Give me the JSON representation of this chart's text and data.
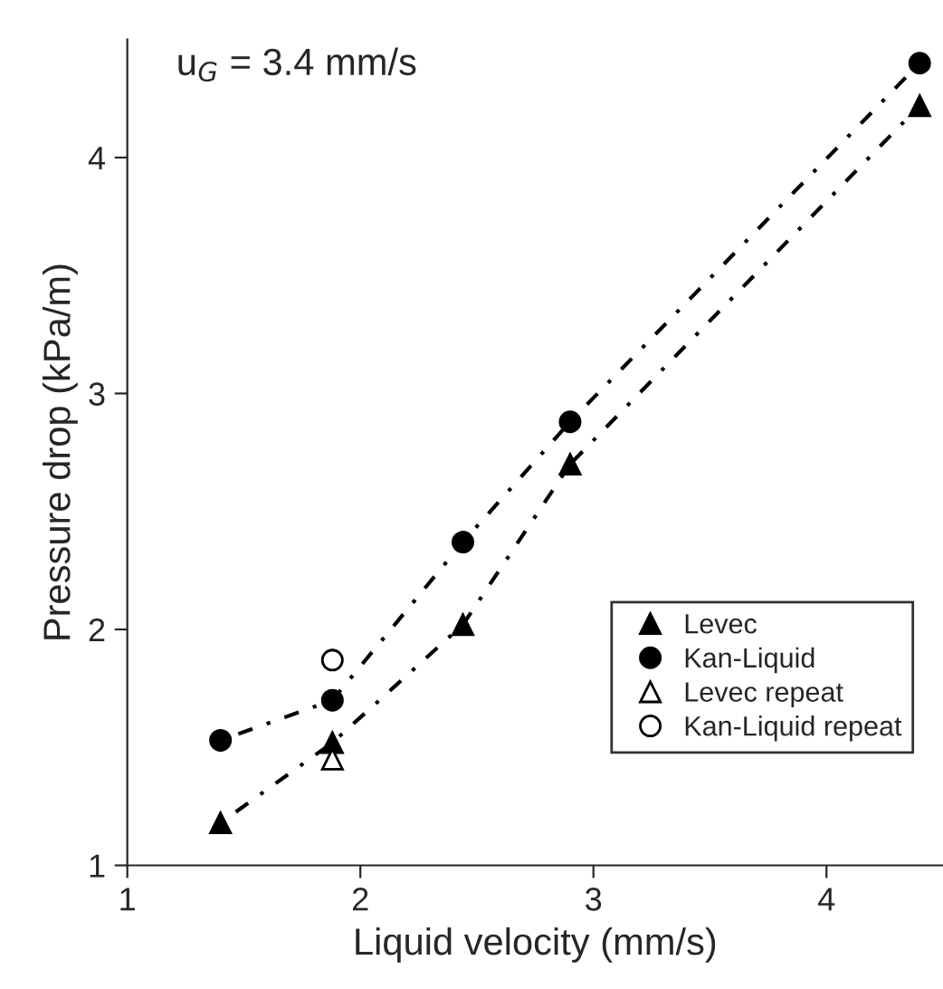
{
  "chart_data": {
    "type": "scatter",
    "xlabel": "Liquid velocity (mm/s)",
    "ylabel": "Pressure drop (kPa/m)",
    "annotations": [
      "u$_{G}$ = 3.4 mm/s"
    ],
    "xlim": [
      1,
      4.5
    ],
    "xticks": [
      1,
      2,
      3,
      4
    ],
    "ylim": [
      1,
      4.5
    ],
    "yticks": [
      1,
      2,
      3,
      4
    ],
    "grid": false,
    "legend": "bottom right",
    "series": [
      {
        "name": "Levec",
        "type": "line",
        "marker": "triangle",
        "line_style": "dotted",
        "color": "#000000",
        "x": [
          1.4,
          1.88,
          2.44,
          2.9,
          4.4
        ],
        "values": [
          1.18,
          1.52,
          2.02,
          2.7,
          4.22
        ]
      },
      {
        "name": "Kan-Liquid",
        "type": "line",
        "marker": "circle",
        "line_style": "dotted",
        "color": "#000000",
        "x": [
          1.4,
          1.88,
          2.44,
          2.9,
          4.4
        ],
        "values": [
          1.53,
          1.7,
          2.37,
          2.88,
          4.4
        ]
      },
      {
        "name": "Levec repeat",
        "marker": "triangle",
        "color": "#ffffff",
        "x": [
          1.88
        ],
        "values": [
          1.45
        ]
      },
      {
        "name": "Kan-Liquid repeat",
        "marker": "circle",
        "color": "#ffffff",
        "x": [
          1.88
        ],
        "values": [
          1.87
        ]
      }
    ]
  }
}
